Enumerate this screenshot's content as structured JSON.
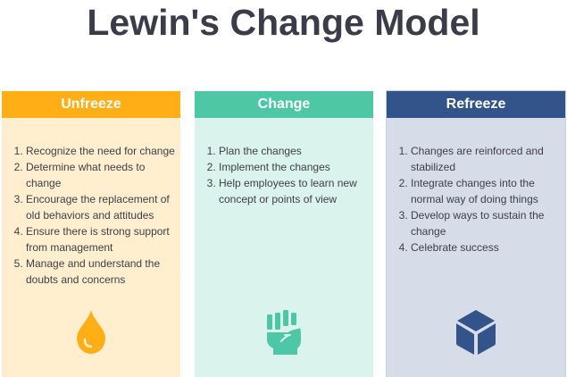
{
  "title": "Lewin's Change Model",
  "columns": [
    {
      "heading": "Unfreeze",
      "icon": "water-drop-icon",
      "color": "#ffae15",
      "items": [
        "Recognize the need for change",
        "Determine what needs to change",
        "Encourage the replacement of old behaviors and attitudes",
        "Ensure there is strong support from management",
        "Manage and understand the doubts and concerns"
      ]
    },
    {
      "heading": "Change",
      "icon": "fist-icon",
      "color": "#4ec7a6",
      "items": [
        "Plan the changes",
        "Implement the changes",
        "Help employees to learn new concept or points of view"
      ]
    },
    {
      "heading": "Refreeze",
      "icon": "cube-icon",
      "color": "#33548a",
      "items": [
        "Changes are reinforced and stabilized",
        "Integrate changes into the normal way of doing things",
        "Develop ways to sustain the change",
        "Celebrate success"
      ]
    }
  ]
}
